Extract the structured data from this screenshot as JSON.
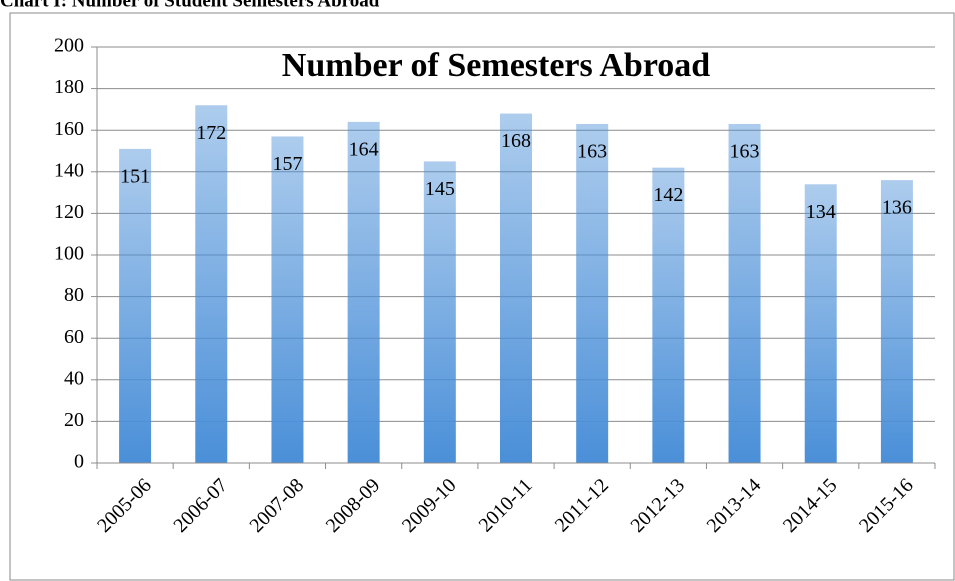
{
  "page_title": "Chart I: Number of Student Semesters Abroad",
  "chart_data": {
    "type": "bar",
    "title": "Number of Semesters Abroad",
    "categories": [
      "2005-06",
      "2006-07",
      "2007-08",
      "2008-09",
      "2009-10",
      "2010-11",
      "2011-12",
      "2012-13",
      "2013-14",
      "2014-15",
      "2015-16"
    ],
    "values": [
      151,
      172,
      157,
      164,
      145,
      168,
      163,
      142,
      163,
      134,
      136
    ],
    "color": "#4a8fd8",
    "ylim": [
      0,
      200
    ],
    "yticks": [
      0,
      20,
      40,
      60,
      80,
      100,
      120,
      140,
      160,
      180,
      200
    ],
    "grid": true
  }
}
